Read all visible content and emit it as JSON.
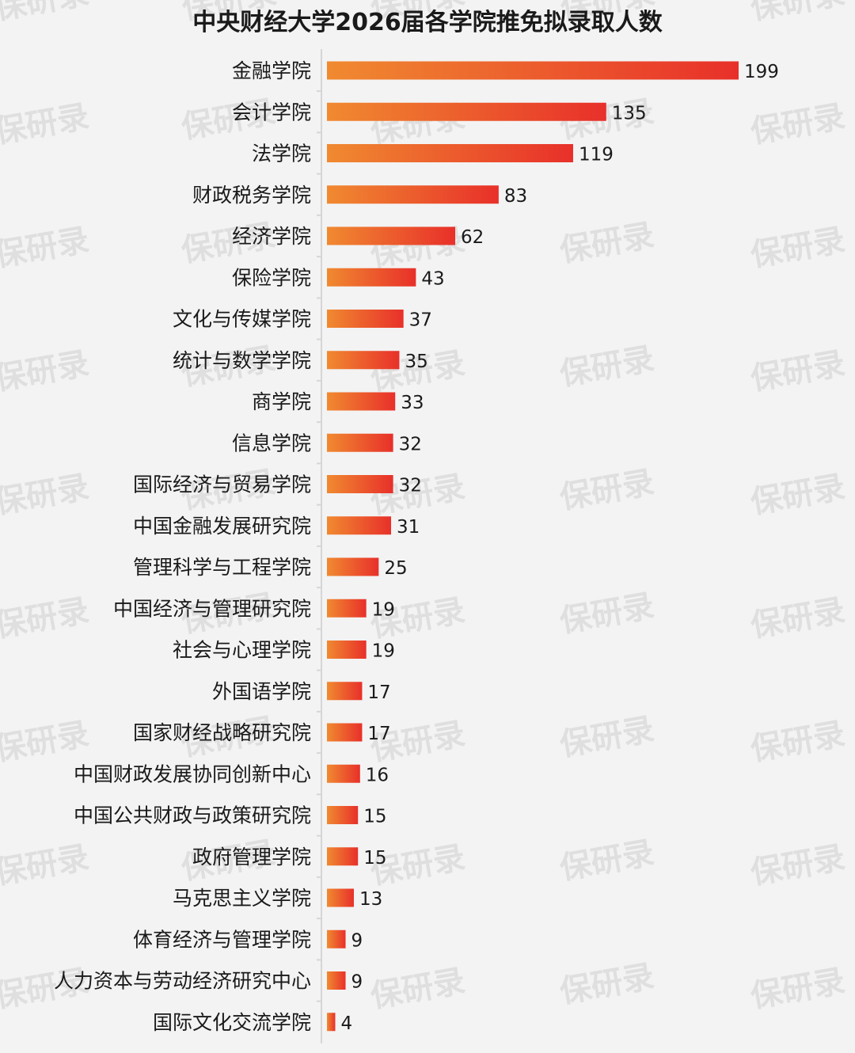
{
  "watermark": "保研录",
  "chart_data": {
    "type": "bar",
    "orientation": "horizontal",
    "title": "中央财经大学2026届各学院推免拟录取人数",
    "categories": [
      "金融学院",
      "会计学院",
      "法学院",
      "财政税务学院",
      "经济学院",
      "保险学院",
      "文化与传媒学院",
      "统计与数学学院",
      "商学院",
      "信息学院",
      "国际经济与贸易学院",
      "中国金融发展研究院",
      "管理科学与工程学院",
      "中国经济与管理研究院",
      "社会与心理学院",
      "外国语学院",
      "国家财经战略研究院",
      "中国财政发展协同创新中心",
      "中国公共财政与政策研究院",
      "政府管理学院",
      "马克思主义学院",
      "体育经济与管理学院",
      "人力资本与劳动经济研究中心",
      "国际文化交流学院"
    ],
    "values": [
      199,
      135,
      119,
      83,
      62,
      43,
      37,
      35,
      33,
      32,
      32,
      31,
      25,
      19,
      19,
      17,
      17,
      16,
      15,
      15,
      13,
      9,
      9,
      4
    ],
    "xlim": [
      0,
      199
    ],
    "grid": false,
    "legend": "none",
    "bar_gradient": [
      "#f08a30",
      "#e8302a"
    ],
    "text_color": "#1a1a1a",
    "background": "#f3f3f3"
  }
}
